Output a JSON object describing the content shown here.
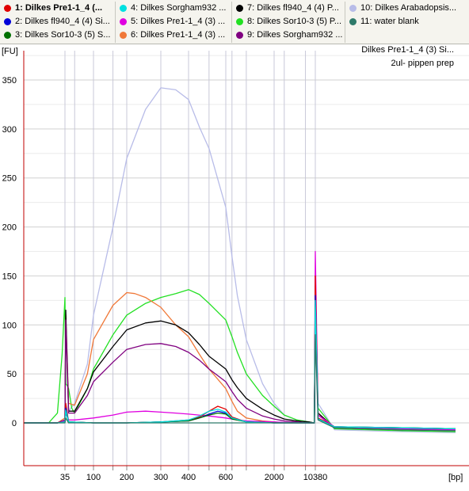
{
  "legend": {
    "items": [
      {
        "label": "1: Dilkes Pre1-1_4 (...",
        "color": "#e00000",
        "bold": true
      },
      {
        "label": "2: Dilkes fl940_4 (4) Si...",
        "color": "#0000d8"
      },
      {
        "label": "3: Dilkes Sor10-3 (5) S...",
        "color": "#007000"
      },
      {
        "label": "4: Dilkes Sorgham932 ...",
        "color": "#00e0e0"
      },
      {
        "label": "5: Dilkes Pre1-1_4 (3) ...",
        "color": "#e000e0"
      },
      {
        "label": "6: Dilkes Pre1-1_4 (3) ...",
        "color": "#f07838"
      },
      {
        "label": "7: Dilkes fl940_4 (4) P...",
        "color": "#000000"
      },
      {
        "label": "8: Dilkes Sor10-3 (5) P...",
        "color": "#22e022"
      },
      {
        "label": "9: Dilkes Sorgham932 ...",
        "color": "#800080"
      },
      {
        "label": "10: Dilkes Arabadopsis...",
        "color": "#b8bce8"
      },
      {
        "label": "11: water blank",
        "color": "#2e7a6a"
      }
    ]
  },
  "chart_data": {
    "type": "line",
    "ylabel": "[FU]",
    "xlabel": "[bp]",
    "annotation_line1": "Dilkes Pre1-1_4 (3) Si...",
    "annotation_line2": "2ul- pippen prep",
    "ylim": [
      -40,
      370
    ],
    "yticks": [
      0,
      50,
      100,
      150,
      200,
      250,
      300,
      350
    ],
    "xticks": [
      "35",
      "100",
      "200",
      "300",
      "400",
      "600",
      "2000",
      "10380"
    ],
    "ladder_sizes": [
      35,
      50,
      100,
      150,
      200,
      300,
      400,
      500,
      600,
      700,
      1000,
      2000,
      3000,
      7000,
      10380
    ],
    "grid": true,
    "series": [
      {
        "name": "10: Dilkes Arabadopsis...",
        "color": "#b8bce8",
        "x": [
          15,
          30,
          35,
          36,
          40,
          50,
          80,
          100,
          150,
          200,
          250,
          300,
          350,
          400,
          450,
          500,
          600,
          700,
          800,
          1000,
          1500,
          2000,
          3000,
          5000,
          8000,
          10000,
          10380,
          10600,
          12000,
          20000,
          30000
        ],
        "y": [
          0,
          0,
          3,
          100,
          12,
          20,
          60,
          110,
          200,
          270,
          320,
          342,
          340,
          330,
          302,
          280,
          220,
          170,
          130,
          85,
          40,
          20,
          8,
          3,
          1,
          0,
          140,
          20,
          -7,
          -9,
          -10
        ]
      },
      {
        "name": "8: Dilkes Sor10-3 (5) P...",
        "color": "#22e022",
        "x": [
          15,
          25,
          30,
          33,
          35,
          36,
          38,
          40,
          45,
          50,
          80,
          100,
          150,
          200,
          250,
          300,
          350,
          400,
          450,
          500,
          600,
          700,
          800,
          1000,
          1500,
          2000,
          3000,
          5000,
          8000,
          10000,
          10380,
          10600,
          12000,
          20000,
          30000
        ],
        "y": [
          0,
          0,
          10,
          70,
          128,
          40,
          38,
          35,
          15,
          10,
          35,
          55,
          90,
          110,
          122,
          128,
          132,
          136,
          131,
          122,
          105,
          88,
          72,
          50,
          28,
          17,
          8,
          3,
          1,
          0,
          120,
          15,
          -6,
          -8,
          -9
        ]
      },
      {
        "name": "6: Dilkes Pre1-1_4 (3) ...",
        "color": "#f07838",
        "x": [
          15,
          30,
          35,
          36,
          40,
          50,
          80,
          100,
          150,
          200,
          220,
          250,
          300,
          350,
          400,
          450,
          500,
          600,
          700,
          800,
          1000,
          1500,
          2000,
          3000,
          5000,
          8000,
          10000,
          10380,
          10600,
          12000,
          20000,
          30000
        ],
        "y": [
          0,
          0,
          5,
          110,
          20,
          18,
          50,
          85,
          120,
          133,
          132,
          128,
          118,
          100,
          88,
          70,
          55,
          35,
          22,
          12,
          5,
          2,
          1,
          0,
          0,
          0,
          0,
          150,
          10,
          -5,
          -7,
          -8
        ]
      },
      {
        "name": "7: Dilkes fl940_4 (4) P...",
        "color": "#000000",
        "x": [
          15,
          30,
          35,
          36,
          40,
          50,
          80,
          100,
          150,
          200,
          250,
          300,
          350,
          400,
          450,
          500,
          600,
          700,
          800,
          1000,
          1500,
          2000,
          3000,
          5000,
          8000,
          10000,
          10380,
          10600,
          12000,
          20000,
          30000
        ],
        "y": [
          0,
          0,
          3,
          115,
          12,
          12,
          35,
          52,
          78,
          95,
          102,
          104,
          100,
          92,
          80,
          68,
          55,
          44,
          36,
          25,
          14,
          8,
          4,
          2,
          1,
          0,
          140,
          10,
          -5,
          -7,
          -8
        ]
      },
      {
        "name": "9: Dilkes Sorgham932 ...",
        "color": "#800080",
        "x": [
          15,
          30,
          35,
          36,
          40,
          50,
          80,
          100,
          150,
          200,
          250,
          300,
          350,
          400,
          450,
          500,
          600,
          700,
          800,
          1000,
          1500,
          2000,
          3000,
          5000,
          8000,
          10000,
          10380,
          10600,
          12000,
          20000,
          30000
        ],
        "y": [
          0,
          0,
          3,
          105,
          10,
          10,
          28,
          42,
          62,
          75,
          80,
          81,
          78,
          72,
          64,
          55,
          42,
          32,
          24,
          15,
          7,
          4,
          2,
          1,
          0,
          0,
          120,
          8,
          -5,
          -7,
          -8
        ]
      },
      {
        "name": "5: Dilkes Pre1-1_4 (3) ...",
        "color": "#e000e0",
        "x": [
          15,
          30,
          35,
          36,
          40,
          50,
          100,
          150,
          200,
          250,
          300,
          350,
          400,
          500,
          600,
          800,
          1000,
          2000,
          5000,
          10000,
          10380,
          10600,
          12000,
          20000,
          30000
        ],
        "y": [
          0,
          0,
          2,
          10,
          3,
          3,
          5,
          8,
          11,
          12,
          11,
          10,
          9,
          7,
          5,
          3,
          2,
          1,
          0,
          0,
          175,
          8,
          -4,
          -6,
          -7
        ]
      },
      {
        "name": "1: Dilkes Pre1-1_4 (...",
        "color": "#e00000",
        "x": [
          15,
          30,
          35,
          36,
          40,
          100,
          200,
          300,
          400,
          450,
          500,
          550,
          600,
          700,
          1000,
          2000,
          5000,
          10000,
          10380,
          10600,
          12000,
          20000,
          30000
        ],
        "y": [
          0,
          0,
          1,
          20,
          1,
          0,
          0,
          1,
          3,
          6,
          12,
          17,
          14,
          6,
          1,
          0,
          0,
          0,
          150,
          5,
          -4,
          -5,
          -6
        ]
      },
      {
        "name": "2: Dilkes fl940_4 (4) Si...",
        "color": "#0000d8",
        "x": [
          15,
          30,
          35,
          36,
          40,
          100,
          200,
          300,
          400,
          450,
          500,
          550,
          600,
          700,
          1000,
          2000,
          5000,
          10000,
          10380,
          10600,
          12000,
          20000,
          30000
        ],
        "y": [
          0,
          0,
          1,
          15,
          1,
          0,
          0,
          1,
          2,
          5,
          9,
          12,
          10,
          5,
          1,
          0,
          0,
          0,
          130,
          4,
          -4,
          -5,
          -6
        ]
      },
      {
        "name": "3: Dilkes Sor10-3 (5) S...",
        "color": "#007000",
        "x": [
          15,
          30,
          35,
          36,
          40,
          100,
          200,
          300,
          400,
          450,
          500,
          550,
          600,
          700,
          1000,
          2000,
          5000,
          10000,
          10380,
          10600,
          12000,
          20000,
          30000
        ],
        "y": [
          0,
          0,
          1,
          12,
          1,
          0,
          0,
          1,
          2,
          5,
          8,
          10,
          9,
          4,
          1,
          0,
          0,
          0,
          120,
          4,
          -4,
          -5,
          -6
        ]
      },
      {
        "name": "4: Dilkes Sorgham932 ...",
        "color": "#00e0e0",
        "x": [
          15,
          30,
          35,
          36,
          40,
          100,
          200,
          300,
          400,
          450,
          500,
          550,
          600,
          700,
          1000,
          2000,
          5000,
          10000,
          10380,
          10600,
          12000,
          20000,
          30000
        ],
        "y": [
          0,
          0,
          1,
          13,
          1,
          0,
          0,
          1,
          3,
          7,
          12,
          14,
          11,
          5,
          1,
          0,
          0,
          0,
          125,
          4,
          -4,
          -5,
          -6
        ]
      },
      {
        "name": "11: water blank",
        "color": "#2e7a6a",
        "x": [
          15,
          30,
          35,
          36,
          40,
          100,
          1000,
          10000,
          10380,
          10600,
          12000,
          20000,
          30000
        ],
        "y": [
          0,
          0,
          0,
          5,
          0,
          0,
          0,
          0,
          90,
          3,
          -5,
          -7,
          -8
        ]
      }
    ]
  }
}
